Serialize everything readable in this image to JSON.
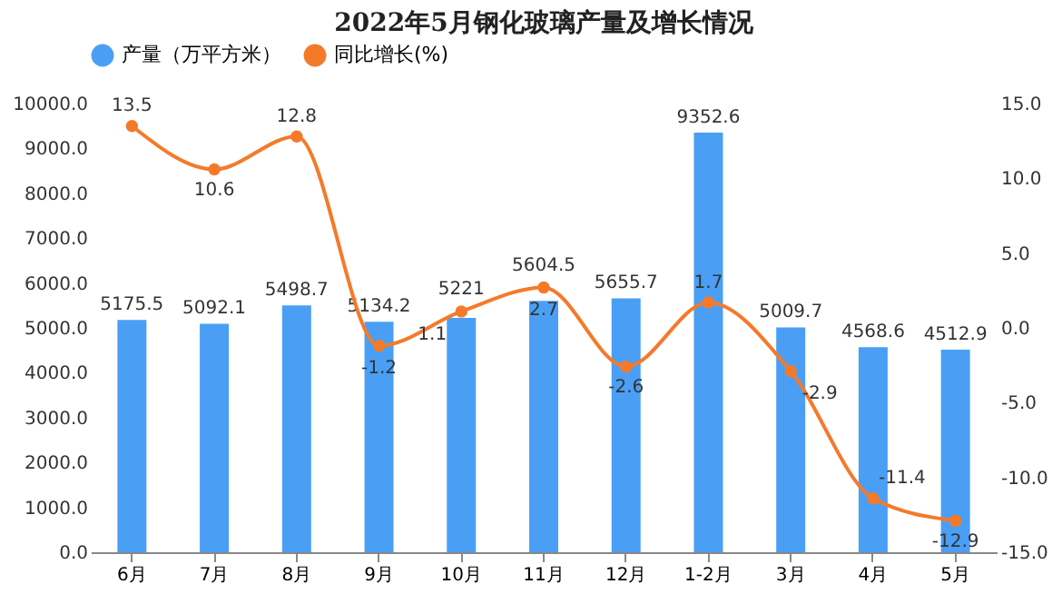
{
  "chart_data": {
    "type": "bar",
    "title": "2022年5月钢化玻璃产量及增长情况",
    "categories": [
      "6月",
      "7月",
      "8月",
      "9月",
      "10月",
      "11月",
      "12月",
      "1-2月",
      "3月",
      "4月",
      "5月"
    ],
    "series": [
      {
        "name": "产量（万平方米）",
        "color": "#4a9ff5",
        "values": [
          5175.5,
          5092.1,
          5498.7,
          5134.2,
          5221,
          5604.5,
          5655.7,
          9352.6,
          5009.7,
          4568.6,
          4512.9
        ]
      },
      {
        "name": "同比增长(%)",
        "type": "line",
        "axis": "y2",
        "color": "#f47a2a",
        "values": [
          13.5,
          10.6,
          12.8,
          -1.2,
          1.1,
          2.7,
          -2.6,
          1.7,
          -2.9,
          -11.4,
          -12.9
        ]
      }
    ],
    "ylim": [
      0,
      10000
    ],
    "yticks": [
      {
        "value": 0,
        "label": "0.0"
      },
      {
        "value": 1000,
        "label": "1000.0"
      },
      {
        "value": 2000,
        "label": "2000.0"
      },
      {
        "value": 3000,
        "label": "3000.0"
      },
      {
        "value": 4000,
        "label": "4000.0"
      },
      {
        "value": 5000,
        "label": "5000.0"
      },
      {
        "value": 6000,
        "label": "6000.0"
      },
      {
        "value": 7000,
        "label": "7000.0"
      },
      {
        "value": 8000,
        "label": "8000.0"
      },
      {
        "value": 9000,
        "label": "9000.0"
      },
      {
        "value": 10000,
        "label": "10000.0"
      }
    ],
    "y2lim": [
      -15,
      15
    ],
    "y2ticks": [
      {
        "value": -15,
        "label": "-15.0"
      },
      {
        "value": -10,
        "label": "-10.0"
      },
      {
        "value": -5,
        "label": "-5.0"
      },
      {
        "value": 0,
        "label": "0.0"
      },
      {
        "value": 5,
        "label": "5.0"
      },
      {
        "value": 10,
        "label": "10.0"
      },
      {
        "value": 15,
        "label": "15.0"
      }
    ],
    "data_labels": true,
    "legend": "top",
    "marker": "circle",
    "line_style": "solid"
  }
}
